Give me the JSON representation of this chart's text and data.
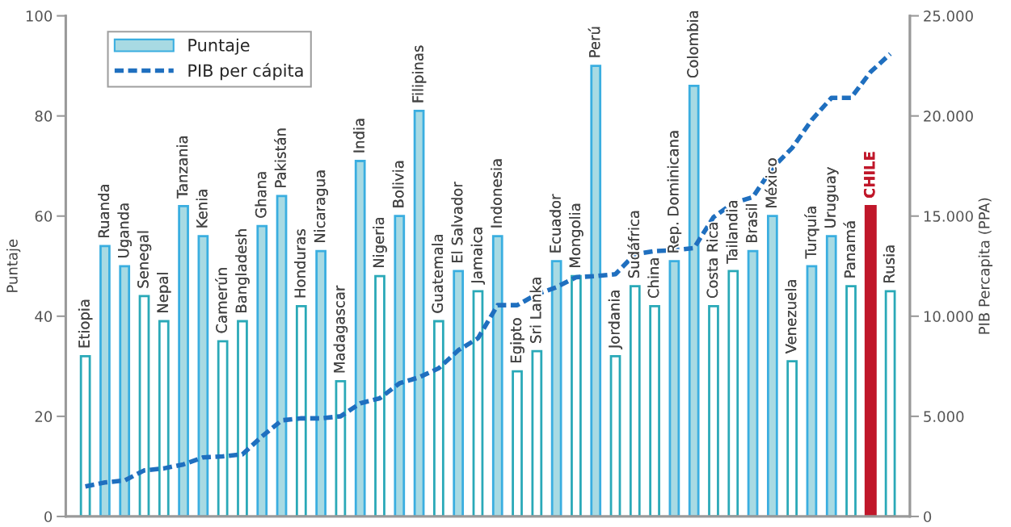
{
  "chart_data": {
    "type": "bar",
    "categories": [
      "Etiopia",
      "Ruanda",
      "Uganda",
      "Senegal",
      "Nepal",
      "Tanzania",
      "Kenia",
      "Camerún",
      "Bangladesh",
      "Ghana",
      "Pakistán",
      "Honduras",
      "Nicaragua",
      "Madagascar",
      "India",
      "Nigeria",
      "Bolivia",
      "Filipinas",
      "Guatemala",
      "El Salvador",
      "Jamaica",
      "Indonesia",
      "Egipto",
      "Sri Lanka",
      "Ecuador",
      "Mongolia",
      "Perú",
      "Jordania",
      "Sudáfrica",
      "China",
      "Rep. Dominicana",
      "Colombia",
      "Costa Rica",
      "Tailandia",
      "Brasil",
      "México",
      "Venezuela",
      "Turquía",
      "Uruguay",
      "Panamá",
      "CHILE",
      "Rusia"
    ],
    "ylabel": "Puntaje",
    "y2label": "PIB Percapita (PPA)",
    "ylim": [
      0,
      100
    ],
    "yticks": [
      0,
      20,
      40,
      60,
      80,
      100
    ],
    "y2lim": [
      0,
      25000
    ],
    "y2ticks": [
      {
        "value": 0,
        "label": "0"
      },
      {
        "value": 5000,
        "label": "5.000"
      },
      {
        "value": 10000,
        "label": "10.000"
      },
      {
        "value": 15000,
        "label": "15.000"
      },
      {
        "value": 20000,
        "label": "20.000"
      },
      {
        "value": 25000,
        "label": "25.000"
      }
    ],
    "series": [
      {
        "name": "Puntaje",
        "color": "#a8dae3",
        "values": [
          32,
          54,
          50,
          44,
          39,
          62,
          56,
          35,
          39,
          58,
          64,
          42,
          53,
          27,
          71,
          48,
          60,
          81,
          39,
          49,
          45,
          56,
          29,
          33,
          51,
          48,
          90,
          32,
          46,
          42,
          51,
          86,
          42,
          49,
          53,
          60,
          31,
          50,
          56,
          46,
          62,
          45
        ],
        "colors": [
          "#ffffff",
          "#a8dae3",
          "#a8dae3",
          "#ffffff",
          "#ffffff",
          "#a8dae3",
          "#a8dae3",
          "#ffffff",
          "#ffffff",
          "#a8dae3",
          "#a8dae3",
          "#ffffff",
          "#a8dae3",
          "#ffffff",
          "#a8dae3",
          "#ffffff",
          "#a8dae3",
          "#a8dae3",
          "#ffffff",
          "#a8dae3",
          "#ffffff",
          "#a8dae3",
          "#ffffff",
          "#ffffff",
          "#a8dae3",
          "#ffffff",
          "#a8dae3",
          "#ffffff",
          "#ffffff",
          "#ffffff",
          "#a8dae3",
          "#a8dae3",
          "#ffffff",
          "#ffffff",
          "#a8dae3",
          "#a8dae3",
          "#ffffff",
          "#a8dae3",
          "#a8dae3",
          "#ffffff",
          "#c0172a",
          "#ffffff"
        ]
      },
      {
        "name": "PIB per cápita",
        "type": "line",
        "axis": "y2",
        "color": "#1f6fbf",
        "line_style": "dashed",
        "values": [
          1500,
          1700,
          1800,
          2300,
          2400,
          2600,
          2950,
          3000,
          3100,
          4000,
          4800,
          4900,
          4900,
          5000,
          5650,
          5900,
          6650,
          6950,
          7400,
          8300,
          8900,
          10550,
          10550,
          11100,
          11450,
          11950,
          12000,
          12100,
          13100,
          13250,
          13300,
          13400,
          14950,
          15650,
          15950,
          17400,
          18400,
          19800,
          20900,
          20900,
          22200,
          23100
        ]
      }
    ],
    "legend": "top left",
    "grid": false
  }
}
